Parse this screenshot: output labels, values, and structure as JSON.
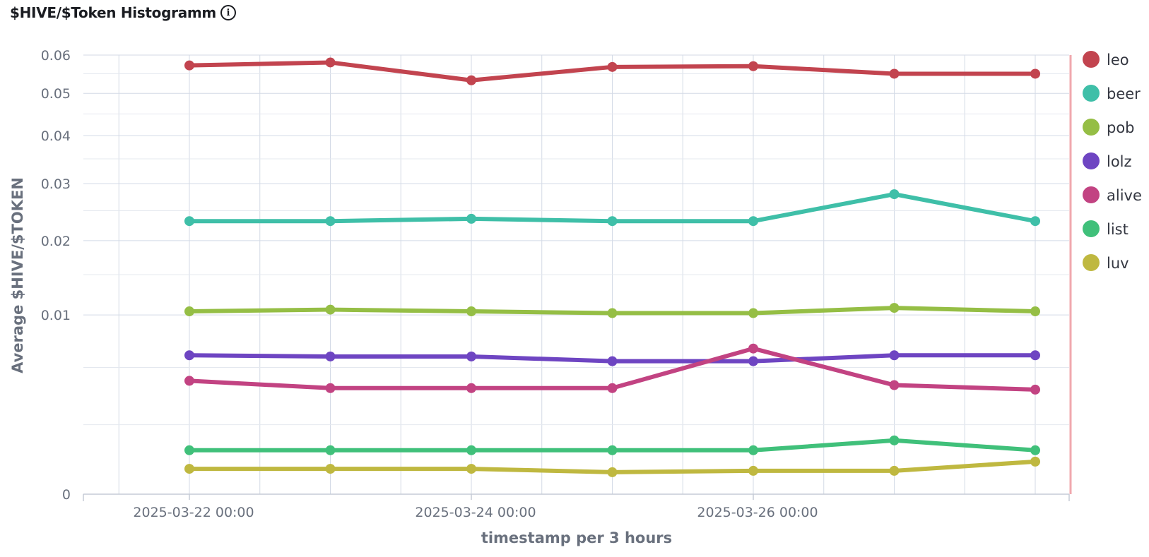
{
  "header": {
    "title": "$HIVE/$Token Histogramm",
    "info_icon": "info-icon"
  },
  "chart_data": {
    "type": "line",
    "xlabel": "timestamp per 3 hours",
    "ylabel": "Average $HIVE/$TOKEN",
    "x_tick_labels": [
      "2025-03-22 00:00",
      "2025-03-24 00:00",
      "2025-03-26 00:00"
    ],
    "y_tick_labels": [
      "0",
      "0.01",
      "0.02",
      "0.03",
      "0.04",
      "0.05",
      "0.06"
    ],
    "y_scale": "sqrt",
    "ylim": [
      0,
      0.06
    ],
    "grid": true,
    "legend_position": "right",
    "x": [
      "2025-03-22 00:00",
      "2025-03-23 00:00",
      "2025-03-24 00:00",
      "2025-03-25 00:00",
      "2025-03-26 00:00",
      "2025-03-27 00:00",
      "2025-03-28 00:00"
    ],
    "series": [
      {
        "name": "leo",
        "color": "#c2444f",
        "values": [
          0.0572,
          0.058,
          0.0533,
          0.0568,
          0.057,
          0.055,
          0.055
        ]
      },
      {
        "name": "beer",
        "color": "#3fbfa8",
        "values": [
          0.0232,
          0.0232,
          0.0236,
          0.0232,
          0.0232,
          0.028,
          0.0232
        ]
      },
      {
        "name": "pob",
        "color": "#95be45",
        "values": [
          0.0104,
          0.0106,
          0.0104,
          0.0102,
          0.0102,
          0.0108,
          0.0104
        ]
      },
      {
        "name": "lolz",
        "color": "#6e45c2",
        "values": [
          0.006,
          0.0059,
          0.0059,
          0.0055,
          0.0055,
          0.006,
          0.006
        ]
      },
      {
        "name": "alive",
        "color": "#c24382",
        "values": [
          0.004,
          0.0035,
          0.0035,
          0.0035,
          0.0066,
          0.0037,
          0.0034
        ]
      },
      {
        "name": "list",
        "color": "#40c07a",
        "values": [
          0.0006,
          0.0006,
          0.0006,
          0.0006,
          0.0006,
          0.0009,
          0.0006
        ]
      },
      {
        "name": "luv",
        "color": "#bfb840",
        "values": [
          0.0002,
          0.0002,
          0.0002,
          0.00015,
          0.00017,
          0.00017,
          0.00033
        ]
      }
    ]
  }
}
